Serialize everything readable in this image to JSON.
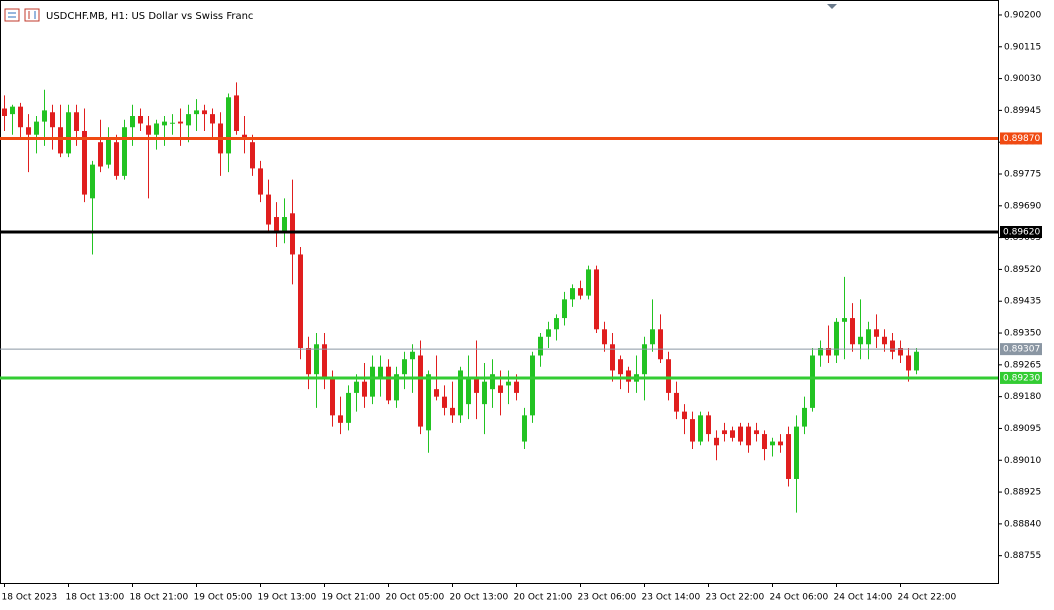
{
  "chart_data": {
    "type": "candlestick",
    "title": "USDCHF.MB, H1:  US Dollar vs Swiss Franc",
    "up_color": "#22c322",
    "down_color": "#e01e1e",
    "ylim": [
      0.88682,
      0.9024
    ],
    "yticks": [
      {
        "value": 0.902,
        "label": "0.90200"
      },
      {
        "value": 0.90115,
        "label": "0.90115"
      },
      {
        "value": 0.9003,
        "label": "0.90030"
      },
      {
        "value": 0.89945,
        "label": "0.89945"
      },
      {
        "value": 0.8986,
        "label": "0.89860"
      },
      {
        "value": 0.89775,
        "label": "0.89775"
      },
      {
        "value": 0.8969,
        "label": "0.89690"
      },
      {
        "value": 0.89605,
        "label": "0.89605"
      },
      {
        "value": 0.8952,
        "label": "0.89520"
      },
      {
        "value": 0.89435,
        "label": "0.89435"
      },
      {
        "value": 0.8935,
        "label": "0.89350"
      },
      {
        "value": 0.89265,
        "label": "0.89265"
      },
      {
        "value": 0.8918,
        "label": "0.89180"
      },
      {
        "value": 0.89095,
        "label": "0.89095"
      },
      {
        "value": 0.8901,
        "label": "0.89010"
      },
      {
        "value": 0.88925,
        "label": "0.88925"
      },
      {
        "value": 0.8884,
        "label": "0.88840"
      },
      {
        "value": 0.88755,
        "label": "0.88755"
      }
    ],
    "levels": [
      {
        "value": 0.8987,
        "label": "0.89870",
        "color": "#f04a12"
      },
      {
        "value": 0.8962,
        "label": "0.89620",
        "color": "#000000"
      },
      {
        "value": 0.89307,
        "label": "0.89307",
        "color": "#8a96a3"
      },
      {
        "value": 0.8923,
        "label": "0.89230",
        "color": "#33cc33"
      }
    ],
    "categories": [
      "18 Oct 2023",
      null,
      null,
      null,
      null,
      null,
      null,
      null,
      "18 Oct 13:00",
      null,
      null,
      null,
      null,
      null,
      null,
      null,
      "18 Oct 21:00",
      null,
      null,
      null,
      null,
      null,
      null,
      null,
      "19 Oct 05:00",
      null,
      null,
      null,
      null,
      null,
      null,
      null,
      "19 Oct 13:00",
      null,
      null,
      null,
      null,
      null,
      null,
      null,
      "19 Oct 21:00",
      null,
      null,
      null,
      null,
      null,
      null,
      null,
      "20 Oct 05:00",
      null,
      null,
      null,
      null,
      null,
      null,
      null,
      "20 Oct 13:00",
      null,
      null,
      null,
      null,
      null,
      null,
      null,
      "20 Oct 21:00",
      null,
      null,
      null,
      null,
      null,
      null,
      null,
      "23 Oct 06:00",
      null,
      null,
      null,
      null,
      null,
      null,
      null,
      "23 Oct 14:00",
      null,
      null,
      null,
      null,
      null,
      null,
      null,
      "23 Oct 22:00",
      null,
      null,
      null,
      null,
      null,
      null,
      null,
      "24 Oct 06:00",
      null,
      null,
      null,
      null,
      null,
      null,
      null,
      "24 Oct 14:00",
      null,
      null,
      null,
      null,
      null,
      null,
      null,
      "24 Oct 22:00",
      null,
      null
    ],
    "ohlc": [
      [
        0.8995,
        0.89985,
        0.8989,
        0.8993
      ],
      [
        0.89935,
        0.8996,
        0.8988,
        0.89955
      ],
      [
        0.89955,
        0.89965,
        0.8987,
        0.899
      ],
      [
        0.899,
        0.89935,
        0.8978,
        0.8988
      ],
      [
        0.8988,
        0.8993,
        0.8983,
        0.89915
      ],
      [
        0.89915,
        0.9,
        0.8985,
        0.89945
      ],
      [
        0.8994,
        0.8996,
        0.8984,
        0.899
      ],
      [
        0.899,
        0.8996,
        0.8982,
        0.8983
      ],
      [
        0.8983,
        0.8996,
        0.8982,
        0.8994
      ],
      [
        0.8994,
        0.8996,
        0.8985,
        0.8989
      ],
      [
        0.8989,
        0.8995,
        0.897,
        0.8972
      ],
      [
        0.8971,
        0.8981,
        0.8956,
        0.898
      ],
      [
        0.8986,
        0.8992,
        0.8978,
        0.89795
      ],
      [
        0.898,
        0.899,
        0.8979,
        0.8987
      ],
      [
        0.8986,
        0.8988,
        0.8976,
        0.8977
      ],
      [
        0.8977,
        0.8992,
        0.8976,
        0.899
      ],
      [
        0.899,
        0.8996,
        0.8985,
        0.8993
      ],
      [
        0.8993,
        0.8995,
        0.8989,
        0.8991
      ],
      [
        0.89905,
        0.8993,
        0.8971,
        0.8988
      ],
      [
        0.8988,
        0.8992,
        0.8984,
        0.8991
      ],
      [
        0.89905,
        0.8993,
        0.8985,
        0.89915
      ],
      [
        0.8991,
        0.89935,
        0.8988,
        0.89912
      ],
      [
        0.89915,
        0.8995,
        0.8985,
        0.8991
      ],
      [
        0.89905,
        0.8996,
        0.8986,
        0.89935
      ],
      [
        0.89935,
        0.89975,
        0.8989,
        0.89945
      ],
      [
        0.89945,
        0.8996,
        0.8989,
        0.89935
      ],
      [
        0.89935,
        0.8995,
        0.8987,
        0.8991
      ],
      [
        0.8991,
        0.8994,
        0.8977,
        0.8983
      ],
      [
        0.8983,
        0.8999,
        0.8978,
        0.8998
      ],
      [
        0.89985,
        0.9002,
        0.8988,
        0.8989
      ],
      [
        0.8988,
        0.8993,
        0.8983,
        0.8987
      ],
      [
        0.8986,
        0.8988,
        0.8977,
        0.8979
      ],
      [
        0.8979,
        0.8981,
        0.897,
        0.8972
      ],
      [
        0.8972,
        0.8976,
        0.8962,
        0.8964
      ],
      [
        0.8966,
        0.897,
        0.8958,
        0.8962
      ],
      [
        0.8962,
        0.8971,
        0.8959,
        0.8966
      ],
      [
        0.8967,
        0.8976,
        0.8948,
        0.8956
      ],
      [
        0.8956,
        0.8958,
        0.8928,
        0.8931
      ],
      [
        0.8931,
        0.8934,
        0.892,
        0.8924
      ],
      [
        0.8924,
        0.8935,
        0.8915,
        0.8932
      ],
      [
        0.8932,
        0.8935,
        0.892,
        0.8923
      ],
      [
        0.8923,
        0.8925,
        0.891,
        0.8913
      ],
      [
        0.8913,
        0.8918,
        0.8908,
        0.8911
      ],
      [
        0.8911,
        0.8921,
        0.8909,
        0.8919
      ],
      [
        0.8919,
        0.8924,
        0.8914,
        0.8922
      ],
      [
        0.8922,
        0.8927,
        0.8915,
        0.8918
      ],
      [
        0.8918,
        0.8929,
        0.8916,
        0.8926
      ],
      [
        0.8923,
        0.8929,
        0.8918,
        0.8926
      ],
      [
        0.8926,
        0.8928,
        0.8916,
        0.8917
      ],
      [
        0.8917,
        0.8926,
        0.8915,
        0.8924
      ],
      [
        0.8924,
        0.893,
        0.892,
        0.8928
      ],
      [
        0.8928,
        0.8932,
        0.8919,
        0.893
      ],
      [
        0.8929,
        0.8933,
        0.8908,
        0.891
      ],
      [
        0.8909,
        0.8925,
        0.8903,
        0.8924
      ],
      [
        0.892,
        0.8929,
        0.8917,
        0.8918
      ],
      [
        0.8918,
        0.8921,
        0.8913,
        0.8915
      ],
      [
        0.8915,
        0.8922,
        0.8911,
        0.8913
      ],
      [
        0.8913,
        0.8926,
        0.8911,
        0.8925
      ],
      [
        0.8916,
        0.8929,
        0.8912,
        0.8923
      ],
      [
        0.8923,
        0.8933,
        0.8912,
        0.8919
      ],
      [
        0.8916,
        0.8927,
        0.8908,
        0.8922
      ],
      [
        0.892,
        0.8928,
        0.8915,
        0.8924
      ],
      [
        0.8921,
        0.8925,
        0.8913,
        0.8919
      ],
      [
        0.8921,
        0.8925,
        0.8916,
        0.8922
      ],
      [
        0.8922,
        0.8924,
        0.8917,
        0.8919
      ],
      [
        0.8906,
        0.8915,
        0.8904,
        0.8913
      ],
      [
        0.8913,
        0.893,
        0.8911,
        0.8929
      ],
      [
        0.8929,
        0.8935,
        0.8926,
        0.8934
      ],
      [
        0.8934,
        0.8938,
        0.8931,
        0.8936
      ],
      [
        0.8936,
        0.894,
        0.8933,
        0.8939
      ],
      [
        0.8939,
        0.8946,
        0.8937,
        0.8944
      ],
      [
        0.8944,
        0.8948,
        0.8942,
        0.8947
      ],
      [
        0.8947,
        0.8949,
        0.8944,
        0.8945
      ],
      [
        0.8945,
        0.8953,
        0.8944,
        0.8952
      ],
      [
        0.8952,
        0.8953,
        0.8935,
        0.8936
      ],
      [
        0.8936,
        0.8938,
        0.893,
        0.8932
      ],
      [
        0.8932,
        0.8935,
        0.8922,
        0.8925
      ],
      [
        0.8928,
        0.8929,
        0.892,
        0.8924
      ],
      [
        0.8925,
        0.8926,
        0.8919,
        0.8922
      ],
      [
        0.8922,
        0.8929,
        0.8919,
        0.8924
      ],
      [
        0.8924,
        0.8934,
        0.8917,
        0.8932
      ],
      [
        0.8932,
        0.8944,
        0.893,
        0.8936
      ],
      [
        0.8936,
        0.894,
        0.8927,
        0.8928
      ],
      [
        0.8928,
        0.893,
        0.8917,
        0.8919
      ],
      [
        0.8919,
        0.8922,
        0.8912,
        0.8914
      ],
      [
        0.8914,
        0.8916,
        0.8908,
        0.8912
      ],
      [
        0.8912,
        0.8914,
        0.8904,
        0.8906
      ],
      [
        0.8906,
        0.8914,
        0.8905,
        0.8913
      ],
      [
        0.8913,
        0.8914,
        0.8906,
        0.8908
      ],
      [
        0.8907,
        0.8909,
        0.8901,
        0.8905
      ],
      [
        0.8909,
        0.8911,
        0.8906,
        0.8908
      ],
      [
        0.8909,
        0.891,
        0.8906,
        0.8907
      ],
      [
        0.891,
        0.8911,
        0.8905,
        0.8906
      ],
      [
        0.891,
        0.8911,
        0.8903,
        0.8905
      ],
      [
        0.8909,
        0.8911,
        0.8906,
        0.8908
      ],
      [
        0.8908,
        0.8909,
        0.8901,
        0.8904
      ],
      [
        0.8905,
        0.8907,
        0.8902,
        0.8906
      ],
      [
        0.8906,
        0.8908,
        0.8903,
        0.8905
      ],
      [
        0.8908,
        0.891,
        0.8894,
        0.8896
      ],
      [
        0.8896,
        0.8913,
        0.8887,
        0.891
      ],
      [
        0.891,
        0.8918,
        0.8908,
        0.8915
      ],
      [
        0.8915,
        0.8931,
        0.8914,
        0.8929
      ],
      [
        0.8929,
        0.8933,
        0.8926,
        0.8931
      ],
      [
        0.8931,
        0.8937,
        0.8927,
        0.8929
      ],
      [
        0.8929,
        0.8939,
        0.8927,
        0.8938
      ],
      [
        0.8938,
        0.895,
        0.8928,
        0.8939
      ],
      [
        0.8939,
        0.8943,
        0.893,
        0.8932
      ],
      [
        0.8932,
        0.8944,
        0.8928,
        0.8934
      ],
      [
        0.8932,
        0.8938,
        0.8928,
        0.8936
      ],
      [
        0.8936,
        0.894,
        0.8931,
        0.8934
      ],
      [
        0.8934,
        0.8936,
        0.893,
        0.8932
      ],
      [
        0.8933,
        0.8935,
        0.8928,
        0.893
      ],
      [
        0.8931,
        0.8933,
        0.8927,
        0.8929
      ],
      [
        0.8929,
        0.8931,
        0.8922,
        0.8925
      ],
      [
        0.8925,
        0.8931,
        0.8924,
        0.893
      ]
    ]
  }
}
